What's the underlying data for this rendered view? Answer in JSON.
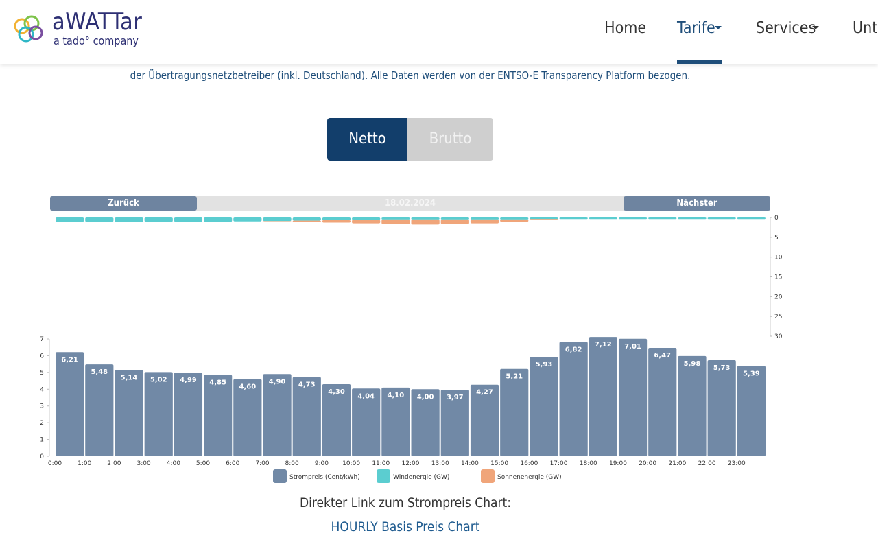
{
  "header": {
    "logo_title": "aWATTar",
    "logo_subtitle": "a tado° company",
    "nav": [
      "Home",
      "Tarife",
      "Services",
      "Unte"
    ]
  },
  "intro": "der Übertragungsnetzbetreiber (inkl. Deutschland). Alle Daten werden von der ENTSO-E Transparency Platform bezogen.",
  "toggle": [
    "Netto",
    "Brutto"
  ],
  "controls": {
    "prev": "Zurück",
    "date": "18.02.2024",
    "next": "Nächster"
  },
  "chart_data": {
    "type": "bar",
    "categories": [
      "0:00",
      "1:00",
      "2:00",
      "3:00",
      "4:00",
      "5:00",
      "6:00",
      "7:00",
      "8:00",
      "9:00",
      "10:00",
      "11:00",
      "12:00",
      "13:00",
      "14:00",
      "15:00",
      "16:00",
      "17:00",
      "18:00",
      "19:00",
      "20:00",
      "21:00",
      "22:00",
      "23:00"
    ],
    "series": [
      {
        "name": "Strompreis (Cent/kWh)",
        "color": "#7189a6",
        "values": [
          6.21,
          5.48,
          5.14,
          5.02,
          4.99,
          4.85,
          4.6,
          4.9,
          4.73,
          4.3,
          4.04,
          4.1,
          4.0,
          3.97,
          4.27,
          5.21,
          5.93,
          6.82,
          7.12,
          7.01,
          6.47,
          5.98,
          5.73,
          5.39
        ],
        "value_labels": [
          "6,21",
          "5,48",
          "5,14",
          "5,02",
          "4,99",
          "4,85",
          "4,60",
          "4,90",
          "4,73",
          "4,30",
          "4,04",
          "4,10",
          "4,00",
          "3,97",
          "4,27",
          "5,21",
          "5,93",
          "6,82",
          "7,12",
          "7,01",
          "6,47",
          "5,98",
          "5,73",
          "5,39"
        ]
      },
      {
        "name": "Windenergie (GW)",
        "color": "#5bcdd0",
        "axis": "y2",
        "values": [
          1.1,
          1.1,
          1.1,
          1.1,
          1.1,
          1.1,
          1.0,
          0.9,
          0.8,
          0.7,
          0.6,
          0.5,
          0.5,
          0.5,
          0.5,
          0.5,
          0.4,
          0.4,
          0.4,
          0.4,
          0.4,
          0.4,
          0.4,
          0.4
        ]
      },
      {
        "name": "Sonnenenergie (GW)",
        "color": "#f0a57a",
        "axis": "y2",
        "values": [
          0,
          0,
          0,
          0,
          0,
          0,
          0,
          0.1,
          0.3,
          0.6,
          0.9,
          1.2,
          1.3,
          1.2,
          1.0,
          0.6,
          0.2,
          0,
          0,
          0,
          0,
          0,
          0,
          0
        ]
      }
    ],
    "ylim": [
      0,
      7
    ],
    "yticks": [
      0,
      1,
      2,
      3,
      4,
      5,
      6,
      7
    ],
    "y2lim": [
      0,
      30
    ],
    "y2ticks": [
      0,
      5,
      10,
      15,
      20,
      25,
      30
    ]
  },
  "footer": {
    "text": "Direkter Link zum Strompreis Chart:",
    "link": "HOURLY Basis Preis Chart"
  }
}
